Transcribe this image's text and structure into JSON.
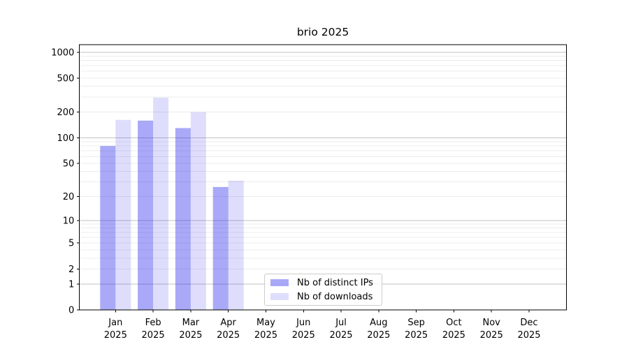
{
  "page": {
    "background": "#ffffff"
  },
  "chart_data": {
    "type": "bar",
    "title": "brio 2025",
    "year": "2025",
    "categories": [
      "Jan",
      "Feb",
      "Mar",
      "Apr",
      "May",
      "Jun",
      "Jul",
      "Aug",
      "Sep",
      "Oct",
      "Nov",
      "Dec"
    ],
    "series": [
      {
        "name": "Nb of distinct IPs",
        "color": "#2222ee",
        "opacity": 0.39,
        "values": [
          80,
          159,
          130,
          26,
          0,
          0,
          0,
          0,
          0,
          0,
          0,
          0
        ]
      },
      {
        "name": "Nb of downloads",
        "color": "#2222ee",
        "opacity": 0.15,
        "values": [
          162,
          295,
          200,
          31,
          0,
          0,
          0,
          0,
          0,
          0,
          0,
          0
        ]
      }
    ],
    "y_ticks": [
      0,
      1,
      2,
      5,
      10,
      20,
      50,
      100,
      200,
      500,
      1000
    ],
    "y_scale": "log1p",
    "y_top_value": 1224,
    "ylim": [
      0,
      1224
    ],
    "grid": {
      "major_values": [
        1,
        10,
        100,
        1000
      ],
      "major_color": "#c2c2c2",
      "minor_color": "#ececec",
      "enabled": true
    },
    "axis_color": "#000000",
    "legend_position": "lower center"
  }
}
